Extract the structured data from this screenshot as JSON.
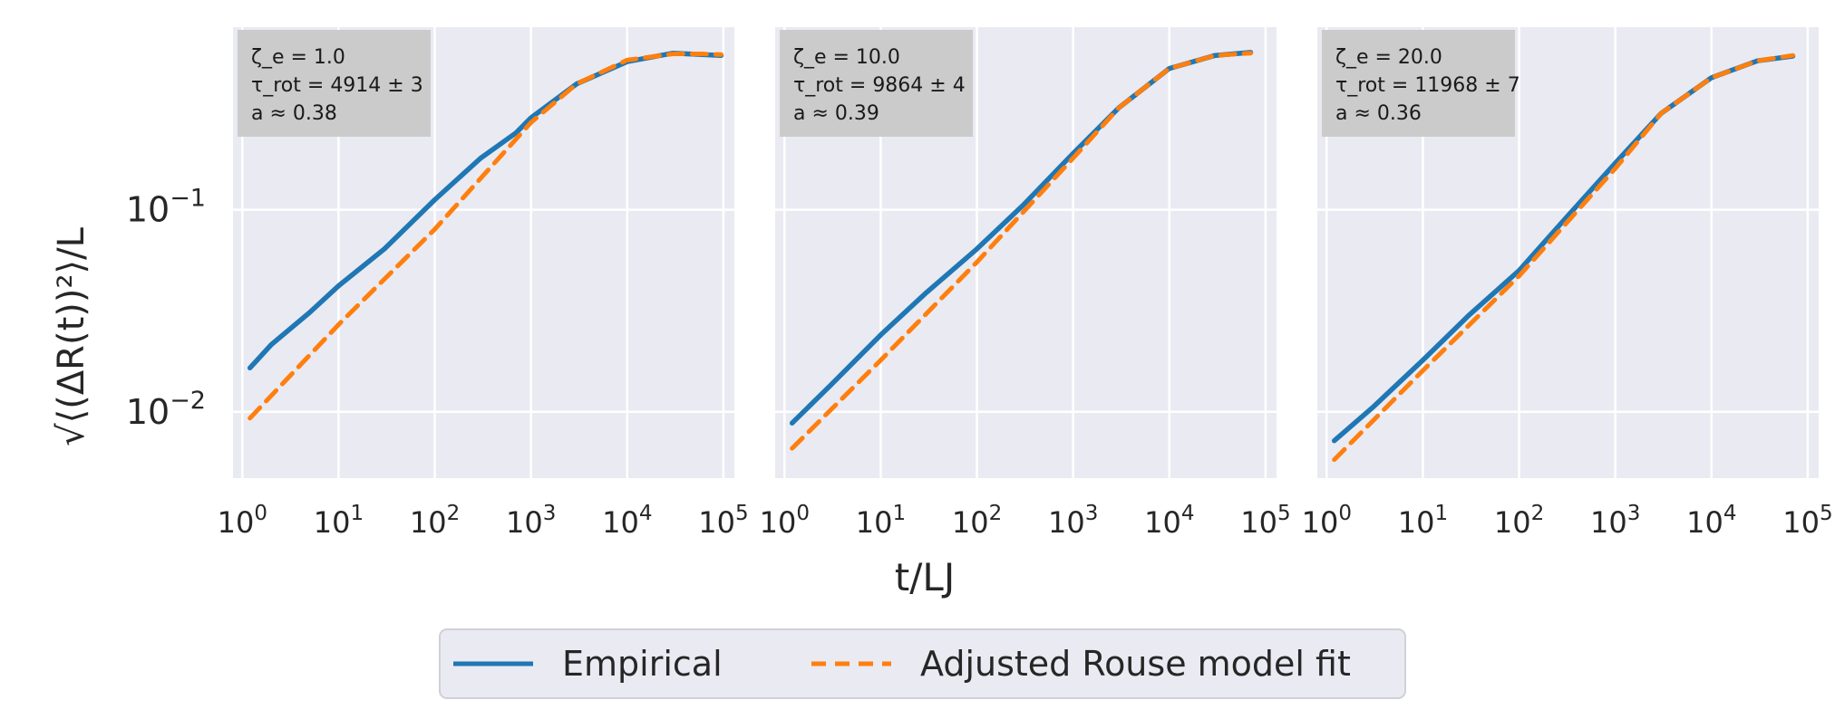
{
  "xlabel": "t/LJ",
  "ylabel": "√⟨(ΔR(t))²⟩/L",
  "legend": {
    "placement": "bottom-center",
    "empirical_label": "Empirical",
    "fit_label": "Adjusted Rouse model fit"
  },
  "colors": {
    "empirical": "#1f77b4",
    "fit": "#ff7f0e",
    "panel_bg": "#eaeaf2",
    "grid": "#ffffff",
    "annotation_bg": "#cbcbcb",
    "text": "#262626"
  },
  "chart_data": [
    {
      "type": "line",
      "xscale": "log",
      "yscale": "log",
      "xlim": [
        0.8,
        130000
      ],
      "ylim": [
        0.0047,
        0.8
      ],
      "x_ticks": [
        "10^0",
        "10^1",
        "10^2",
        "10^3",
        "10^4",
        "10^5"
      ],
      "y_ticks": [
        "10^-1",
        "10^-2"
      ],
      "annotation": [
        "ζ_e = 1.0",
        "τ_rot = 4914 ± 3",
        "a ≈ 0.38"
      ],
      "series": [
        {
          "name": "Empirical",
          "style": "solid",
          "x": [
            1.2,
            2,
            5,
            10,
            30,
            100,
            300,
            700,
            1000,
            3000,
            10000,
            30000,
            60000,
            95000
          ],
          "y": [
            0.0165,
            0.0215,
            0.031,
            0.042,
            0.064,
            0.112,
            0.18,
            0.24,
            0.285,
            0.42,
            0.54,
            0.595,
            0.585,
            0.58
          ]
        },
        {
          "name": "Adjusted Rouse model fit",
          "style": "dashed",
          "x": [
            1.2,
            10,
            100,
            1000,
            3000,
            10000,
            30000,
            60000,
            95000
          ],
          "y": [
            0.0093,
            0.027,
            0.08,
            0.27,
            0.42,
            0.55,
            0.59,
            0.59,
            0.585
          ]
        }
      ]
    },
    {
      "type": "line",
      "xscale": "log",
      "yscale": "log",
      "xlim": [
        0.8,
        130000
      ],
      "ylim": [
        0.0047,
        0.8
      ],
      "x_ticks": [
        "10^0",
        "10^1",
        "10^2",
        "10^3",
        "10^4",
        "10^5"
      ],
      "y_ticks": [
        "10^-1",
        "10^-2"
      ],
      "annotation": [
        "ζ_e = 10.0",
        "τ_rot = 9864 ± 4",
        "a ≈ 0.39"
      ],
      "series": [
        {
          "name": "Empirical",
          "style": "solid",
          "x": [
            1.2,
            3,
            10,
            30,
            100,
            300,
            1000,
            3000,
            10000,
            30000,
            70000
          ],
          "y": [
            0.0088,
            0.0135,
            0.024,
            0.039,
            0.064,
            0.105,
            0.19,
            0.32,
            0.5,
            0.58,
            0.6
          ]
        },
        {
          "name": "Adjusted Rouse model fit",
          "style": "dashed",
          "x": [
            1.2,
            10,
            100,
            1000,
            3000,
            10000,
            30000,
            70000
          ],
          "y": [
            0.0066,
            0.018,
            0.055,
            0.18,
            0.32,
            0.5,
            0.58,
            0.595
          ]
        }
      ]
    },
    {
      "type": "line",
      "xscale": "log",
      "yscale": "log",
      "xlim": [
        0.8,
        130000
      ],
      "ylim": [
        0.0047,
        0.8
      ],
      "x_ticks": [
        "10^0",
        "10^1",
        "10^2",
        "10^3",
        "10^4",
        "10^5"
      ],
      "y_ticks": [
        "10^-1",
        "10^-2"
      ],
      "annotation": [
        "ζ_e = 20.0",
        "τ_rot = 11968 ± 7",
        "a ≈ 0.36"
      ],
      "series": [
        {
          "name": "Empirical",
          "style": "solid",
          "x": [
            1.2,
            3,
            10,
            30,
            100,
            300,
            1000,
            3000,
            10000,
            30000,
            70000
          ],
          "y": [
            0.0072,
            0.0105,
            0.018,
            0.03,
            0.05,
            0.09,
            0.17,
            0.3,
            0.45,
            0.545,
            0.575
          ]
        },
        {
          "name": "Adjusted Rouse model fit",
          "style": "dashed",
          "x": [
            1.2,
            10,
            100,
            1000,
            3000,
            10000,
            30000,
            70000
          ],
          "y": [
            0.0058,
            0.016,
            0.047,
            0.16,
            0.3,
            0.45,
            0.545,
            0.58
          ]
        }
      ]
    }
  ]
}
